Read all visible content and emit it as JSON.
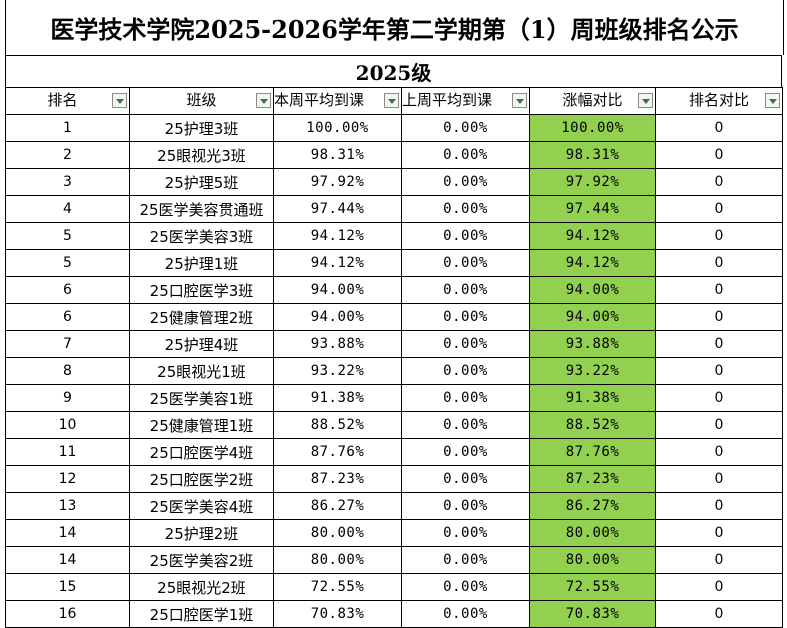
{
  "title": "医学技术学院2025-2026学年第二学期第（1）周班级排名公示",
  "subtitle": "2025级",
  "headers": [
    "排名",
    "班级",
    "本周平均到课",
    "上周平均到课",
    "涨幅对比",
    "排名对比"
  ],
  "highlight_color": "#92d050",
  "rows": [
    {
      "rank": "1",
      "class": "25护理3班",
      "current": "100.00%",
      "previous": "0.00%",
      "change": "100.00%",
      "rank_change": "0"
    },
    {
      "rank": "2",
      "class": "25眼视光3班",
      "current": "98.31%",
      "previous": "0.00%",
      "change": "98.31%",
      "rank_change": "0"
    },
    {
      "rank": "3",
      "class": "25护理5班",
      "current": "97.92%",
      "previous": "0.00%",
      "change": "97.92%",
      "rank_change": "0"
    },
    {
      "rank": "4",
      "class": "25医学美容贯通班",
      "current": "97.44%",
      "previous": "0.00%",
      "change": "97.44%",
      "rank_change": "0"
    },
    {
      "rank": "5",
      "class": "25医学美容3班",
      "current": "94.12%",
      "previous": "0.00%",
      "change": "94.12%",
      "rank_change": "0"
    },
    {
      "rank": "5",
      "class": "25护理1班",
      "current": "94.12%",
      "previous": "0.00%",
      "change": "94.12%",
      "rank_change": "0"
    },
    {
      "rank": "6",
      "class": "25口腔医学3班",
      "current": "94.00%",
      "previous": "0.00%",
      "change": "94.00%",
      "rank_change": "0"
    },
    {
      "rank": "6",
      "class": "25健康管理2班",
      "current": "94.00%",
      "previous": "0.00%",
      "change": "94.00%",
      "rank_change": "0"
    },
    {
      "rank": "7",
      "class": "25护理4班",
      "current": "93.88%",
      "previous": "0.00%",
      "change": "93.88%",
      "rank_change": "0"
    },
    {
      "rank": "8",
      "class": "25眼视光1班",
      "current": "93.22%",
      "previous": "0.00%",
      "change": "93.22%",
      "rank_change": "0"
    },
    {
      "rank": "9",
      "class": "25医学美容1班",
      "current": "91.38%",
      "previous": "0.00%",
      "change": "91.38%",
      "rank_change": "0"
    },
    {
      "rank": "10",
      "class": "25健康管理1班",
      "current": "88.52%",
      "previous": "0.00%",
      "change": "88.52%",
      "rank_change": "0"
    },
    {
      "rank": "11",
      "class": "25口腔医学4班",
      "current": "87.76%",
      "previous": "0.00%",
      "change": "87.76%",
      "rank_change": "0"
    },
    {
      "rank": "12",
      "class": "25口腔医学2班",
      "current": "87.23%",
      "previous": "0.00%",
      "change": "87.23%",
      "rank_change": "0"
    },
    {
      "rank": "13",
      "class": "25医学美容4班",
      "current": "86.27%",
      "previous": "0.00%",
      "change": "86.27%",
      "rank_change": "0"
    },
    {
      "rank": "14",
      "class": "25护理2班",
      "current": "80.00%",
      "previous": "0.00%",
      "change": "80.00%",
      "rank_change": "0"
    },
    {
      "rank": "14",
      "class": "25医学美容2班",
      "current": "80.00%",
      "previous": "0.00%",
      "change": "80.00%",
      "rank_change": "0"
    },
    {
      "rank": "15",
      "class": "25眼视光2班",
      "current": "72.55%",
      "previous": "0.00%",
      "change": "72.55%",
      "rank_change": "0"
    },
    {
      "rank": "16",
      "class": "25口腔医学1班",
      "current": "70.83%",
      "previous": "0.00%",
      "change": "70.83%",
      "rank_change": "0"
    }
  ]
}
